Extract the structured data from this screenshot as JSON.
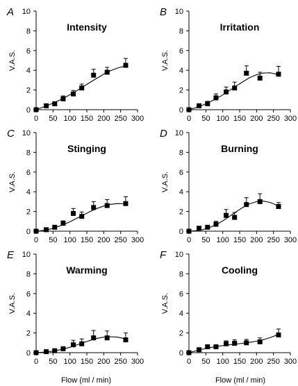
{
  "chart_data": [
    {
      "type": "scatter",
      "panel_label": "A",
      "title": "Intensity",
      "xlabel": "",
      "ylabel": "V.A.S.",
      "xlim": [
        0,
        300
      ],
      "ylim": [
        0,
        10
      ],
      "xticks": [
        0,
        50,
        100,
        150,
        200,
        250,
        300
      ],
      "yticks": [
        0,
        2,
        4,
        6,
        8,
        10
      ],
      "x": [
        0,
        30,
        55,
        80,
        110,
        135,
        170,
        210,
        265
      ],
      "y": [
        0.0,
        0.4,
        0.6,
        1.1,
        1.6,
        2.2,
        3.5,
        3.8,
        4.5
      ],
      "err": [
        0.05,
        0.15,
        0.2,
        0.3,
        0.35,
        0.4,
        0.6,
        0.5,
        0.7
      ],
      "fit_x": [
        0,
        20,
        40,
        60,
        80,
        100,
        120,
        140,
        160,
        180,
        200,
        220,
        240,
        265
      ],
      "fit_y": [
        0.0,
        0.25,
        0.52,
        0.82,
        1.15,
        1.52,
        1.92,
        2.35,
        2.78,
        3.2,
        3.6,
        3.95,
        4.22,
        4.45
      ]
    },
    {
      "type": "scatter",
      "panel_label": "B",
      "title": "Irritation",
      "xlabel": "",
      "ylabel": "V.A.S.",
      "xlim": [
        0,
        300
      ],
      "ylim": [
        0,
        10
      ],
      "xticks": [
        0,
        50,
        100,
        150,
        200,
        250,
        300
      ],
      "yticks": [
        0,
        2,
        4,
        6,
        8,
        10
      ],
      "x": [
        0,
        30,
        55,
        80,
        110,
        135,
        170,
        210,
        265
      ],
      "y": [
        0.0,
        0.4,
        0.6,
        1.2,
        1.8,
        2.2,
        3.7,
        3.2,
        3.6
      ],
      "err": [
        0.05,
        0.2,
        0.25,
        0.4,
        0.5,
        0.6,
        0.75,
        0.6,
        0.8
      ],
      "fit_x": [
        0,
        20,
        40,
        60,
        80,
        100,
        120,
        140,
        160,
        180,
        200,
        220,
        240,
        265
      ],
      "fit_y": [
        0.0,
        0.2,
        0.45,
        0.75,
        1.1,
        1.5,
        1.95,
        2.4,
        2.85,
        3.25,
        3.55,
        3.72,
        3.75,
        3.55
      ]
    },
    {
      "type": "scatter",
      "panel_label": "C",
      "title": "Stinging",
      "xlabel": "",
      "ylabel": "V.A.S.",
      "xlim": [
        0,
        300
      ],
      "ylim": [
        0,
        10
      ],
      "xticks": [
        0,
        50,
        100,
        150,
        200,
        250,
        300
      ],
      "yticks": [
        0,
        2,
        4,
        6,
        8,
        10
      ],
      "x": [
        0,
        30,
        55,
        80,
        110,
        135,
        170,
        210,
        265
      ],
      "y": [
        0.0,
        0.15,
        0.4,
        0.8,
        1.8,
        1.5,
        2.4,
        2.6,
        2.8
      ],
      "err": [
        0.05,
        0.1,
        0.15,
        0.25,
        0.5,
        0.45,
        0.6,
        0.6,
        0.7
      ],
      "fit_x": [
        0,
        20,
        40,
        60,
        80,
        100,
        120,
        140,
        160,
        180,
        200,
        220,
        240,
        265
      ],
      "fit_y": [
        0.0,
        0.08,
        0.2,
        0.4,
        0.65,
        0.95,
        1.3,
        1.65,
        2.0,
        2.3,
        2.55,
        2.72,
        2.8,
        2.78
      ]
    },
    {
      "type": "scatter",
      "panel_label": "D",
      "title": "Burning",
      "xlabel": "",
      "ylabel": "V.A.S.",
      "xlim": [
        0,
        300
      ],
      "ylim": [
        0,
        10
      ],
      "xticks": [
        0,
        50,
        100,
        150,
        200,
        250,
        300
      ],
      "yticks": [
        0,
        2,
        4,
        6,
        8,
        10
      ],
      "x": [
        0,
        30,
        55,
        80,
        110,
        135,
        170,
        210,
        265
      ],
      "y": [
        0.0,
        0.3,
        0.4,
        0.7,
        1.6,
        1.4,
        2.7,
        3.0,
        2.5
      ],
      "err": [
        0.05,
        0.1,
        0.15,
        0.3,
        0.6,
        0.5,
        0.7,
        0.8,
        0.4
      ],
      "fit_x": [
        0,
        20,
        40,
        60,
        80,
        100,
        120,
        140,
        160,
        180,
        200,
        220,
        240,
        265
      ],
      "fit_y": [
        0.0,
        0.05,
        0.15,
        0.35,
        0.65,
        1.05,
        1.5,
        1.98,
        2.42,
        2.78,
        3.0,
        3.05,
        2.92,
        2.55
      ]
    },
    {
      "type": "scatter",
      "panel_label": "E",
      "title": "Warming",
      "xlabel": "",
      "ylabel": "V.A.S.",
      "xlim": [
        0,
        300
      ],
      "ylim": [
        0,
        10
      ],
      "xticks": [
        0,
        50,
        100,
        150,
        200,
        250,
        300
      ],
      "yticks": [
        0,
        2,
        4,
        6,
        8,
        10
      ],
      "x": [
        0,
        30,
        55,
        80,
        110,
        135,
        170,
        210,
        265
      ],
      "y": [
        0.0,
        0.1,
        0.2,
        0.4,
        0.8,
        0.9,
        1.5,
        1.5,
        1.3
      ],
      "err": [
        0.05,
        0.1,
        0.15,
        0.2,
        0.45,
        0.5,
        0.75,
        0.7,
        0.7
      ],
      "fit_x": [
        0,
        20,
        40,
        60,
        80,
        100,
        120,
        140,
        160,
        180,
        200,
        220,
        240,
        265
      ],
      "fit_y": [
        0.0,
        0.05,
        0.12,
        0.22,
        0.36,
        0.55,
        0.78,
        1.02,
        1.25,
        1.45,
        1.58,
        1.62,
        1.58,
        1.4
      ]
    },
    {
      "type": "scatter",
      "panel_label": "F",
      "title": "Cooling",
      "xlabel": "",
      "ylabel": "V.A.S.",
      "xlim": [
        0,
        300
      ],
      "ylim": [
        0,
        10
      ],
      "xticks": [
        0,
        50,
        100,
        150,
        200,
        250,
        300
      ],
      "yticks": [
        0,
        2,
        4,
        6,
        8,
        10
      ],
      "x": [
        0,
        30,
        55,
        80,
        110,
        135,
        170,
        210,
        265
      ],
      "y": [
        0.0,
        0.3,
        0.6,
        0.6,
        0.9,
        0.95,
        1.0,
        1.1,
        1.8
      ],
      "err": [
        0.05,
        0.1,
        0.15,
        0.15,
        0.3,
        0.35,
        0.35,
        0.4,
        0.6
      ],
      "fit_x": [
        0,
        20,
        40,
        60,
        80,
        100,
        120,
        140,
        160,
        180,
        200,
        220,
        240,
        265
      ],
      "fit_y": [
        0.0,
        0.18,
        0.35,
        0.5,
        0.62,
        0.72,
        0.8,
        0.88,
        0.96,
        1.05,
        1.16,
        1.32,
        1.52,
        1.85
      ]
    }
  ],
  "axis_footer": {
    "left": "Flow (ml / min)",
    "right": "Flow (ml / min)"
  }
}
